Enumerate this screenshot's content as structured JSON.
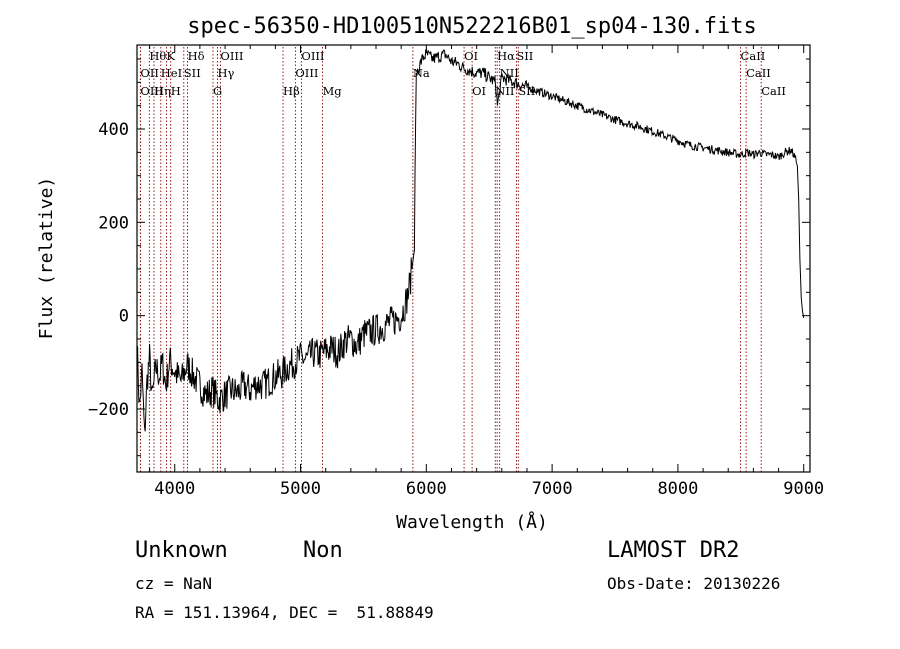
{
  "chart_data": {
    "type": "line",
    "title": "spec-56350-HD100510N522216B01_sp04-130.fits",
    "xlabel": "Wavelength (Å)",
    "ylabel": "Flux (relative)",
    "xlim": [
      3700,
      9050
    ],
    "ylim": [
      -335,
      580
    ],
    "xticks": [
      4000,
      5000,
      6000,
      7000,
      8000,
      9000
    ],
    "yticks": [
      -200,
      0,
      200,
      400
    ],
    "xtick_labels": [
      "4000",
      "5000",
      "6000",
      "7000",
      "8000",
      "9000"
    ],
    "ytick_labels": [
      "−200",
      "0",
      "200",
      "400"
    ],
    "series": [
      {
        "x": [
          3700,
          3720,
          3740,
          3760,
          3780,
          3800,
          3820,
          3850,
          3880,
          3900,
          3930,
          3960,
          4000,
          4050,
          4100,
          4150,
          4200,
          4250,
          4300,
          4350,
          4400,
          4450,
          4500,
          4550,
          4600,
          4650,
          4700,
          4750,
          4800,
          4850,
          4900,
          4950,
          5000,
          5050,
          5100,
          5150,
          5200,
          5250,
          5300,
          5350,
          5400,
          5450,
          5500,
          5550,
          5600,
          5650,
          5700,
          5750,
          5800,
          5850,
          5870,
          5890,
          5905,
          5910,
          5920,
          5940,
          5960,
          5980,
          6000,
          6050,
          6100,
          6150,
          6200,
          6250,
          6300,
          6350,
          6400,
          6450,
          6500,
          6550,
          6565,
          6600,
          6650,
          6700,
          6750,
          6800,
          6900,
          7000,
          7100,
          7200,
          7300,
          7400,
          7500,
          7600,
          7700,
          7800,
          7900,
          8000,
          8100,
          8200,
          8300,
          8400,
          8500,
          8550,
          8600,
          8650,
          8700,
          8750,
          8800,
          8850,
          8900,
          8930,
          8950,
          8960,
          8970,
          8980,
          8990,
          9000
        ],
        "y": [
          -60,
          -200,
          -120,
          -260,
          -140,
          -90,
          -180,
          -110,
          -130,
          -100,
          -150,
          -95,
          -120,
          -140,
          -105,
          -130,
          -150,
          -170,
          -160,
          -180,
          -170,
          -160,
          -165,
          -150,
          -160,
          -145,
          -150,
          -140,
          -130,
          -125,
          -110,
          -100,
          -90,
          -95,
          -80,
          -85,
          -75,
          -70,
          -80,
          -55,
          -50,
          -65,
          -40,
          -35,
          -30,
          -25,
          -15,
          -10,
          0,
          40,
          70,
          110,
          140,
          300,
          520,
          530,
          545,
          555,
          560,
          550,
          555,
          560,
          545,
          540,
          530,
          525,
          520,
          520,
          510,
          500,
          450,
          510,
          505,
          500,
          495,
          490,
          480,
          470,
          460,
          450,
          440,
          430,
          420,
          412,
          405,
          395,
          385,
          375,
          365,
          360,
          355,
          350,
          345,
          350,
          345,
          350,
          345,
          345,
          340,
          350,
          355,
          340,
          320,
          250,
          120,
          40,
          10,
          -5
        ]
      }
    ],
    "emission_lines": [
      {
        "label": "Hθ",
        "x": 3798,
        "row": 1
      },
      {
        "label": "K",
        "x": 3934,
        "row": 1
      },
      {
        "label": "Hδ",
        "x": 4102,
        "row": 1
      },
      {
        "label": "OIII",
        "x": 4363,
        "row": 1
      },
      {
        "label": "OIII",
        "x": 5007,
        "row": 1
      },
      {
        "label": "OI",
        "x": 6300,
        "row": 1
      },
      {
        "label": "Hα",
        "x": 6563,
        "row": 1
      },
      {
        "label": "SII",
        "x": 6716,
        "row": 1
      },
      {
        "label": "CaII",
        "x": 8498,
        "row": 1
      },
      {
        "label": "OII",
        "x": 3727,
        "row": 2
      },
      {
        "label": "HeI",
        "x": 3889,
        "row": 2
      },
      {
        "label": "SII",
        "x": 4072,
        "row": 2
      },
      {
        "label": "Hγ",
        "x": 4340,
        "row": 2
      },
      {
        "label": "OIII",
        "x": 4959,
        "row": 2
      },
      {
        "label": "Na",
        "x": 5893,
        "row": 2
      },
      {
        "label": "NII",
        "x": 6583,
        "row": 2
      },
      {
        "label": "CaII",
        "x": 8542,
        "row": 2
      },
      {
        "label": "OIII",
        "x": 3727,
        "row": 3
      },
      {
        "label": "Hη",
        "x": 3835,
        "row": 3
      },
      {
        "label": "H",
        "x": 3968,
        "row": 3
      },
      {
        "label": "G",
        "x": 4304,
        "row": 3
      },
      {
        "label": "Hβ",
        "x": 4861,
        "row": 3
      },
      {
        "label": "Mg",
        "x": 5175,
        "row": 3
      },
      {
        "label": "OI",
        "x": 6364,
        "row": 3
      },
      {
        "label": "NII",
        "x": 6548,
        "row": 3
      },
      {
        "label": "SII",
        "x": 6731,
        "row": 3
      },
      {
        "label": "CaII",
        "x": 8662,
        "row": 3
      }
    ],
    "line_marker_color": "#8b0000",
    "trace_color": "#000000"
  },
  "info": {
    "class_label": "Unknown",
    "subclass_label": "Non",
    "survey": "LAMOST DR2",
    "cz": "cz = NaN",
    "obs_date": "Obs-Date: 20130226",
    "coords": "RA = 151.13964, DEC =  51.88849"
  }
}
